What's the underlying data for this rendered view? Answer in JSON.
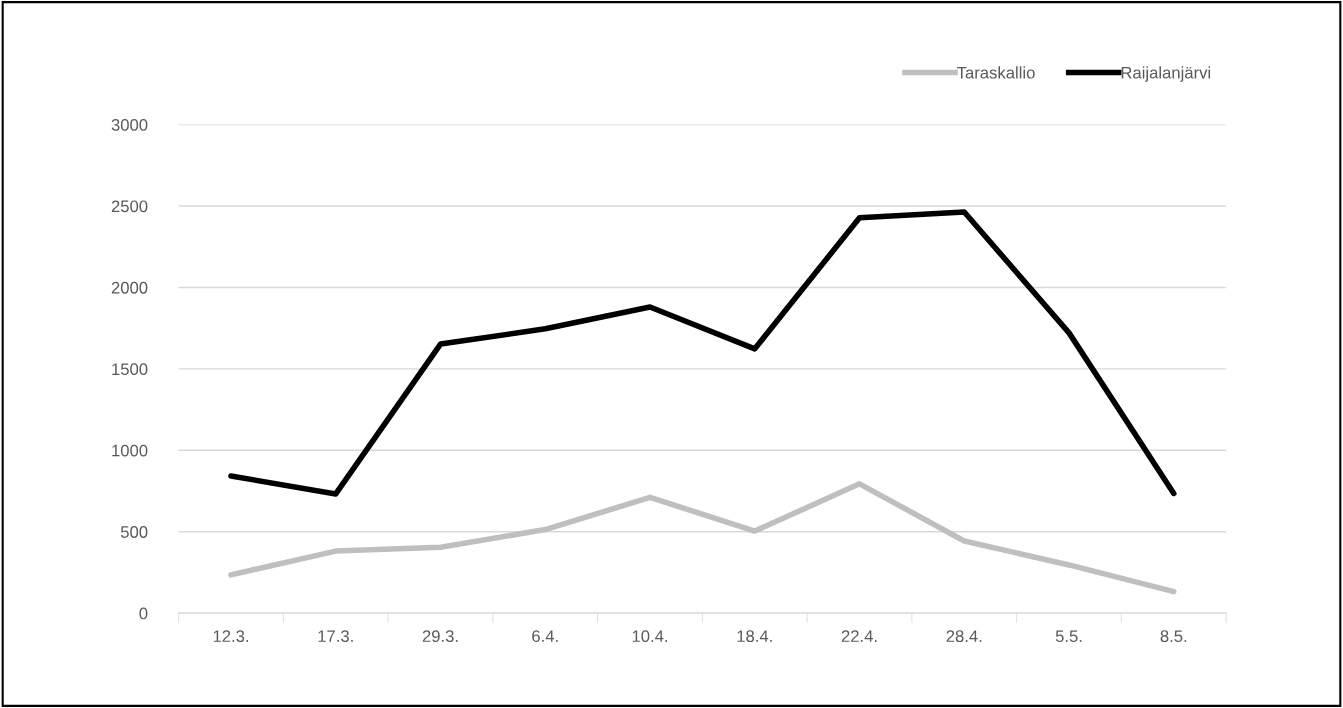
{
  "chart_data": {
    "type": "line",
    "categories": [
      "12.3.",
      "17.3.",
      "29.3.",
      "6.4.",
      "10.4.",
      "18.4.",
      "22.4.",
      "28.4.",
      "5.5.",
      "8.5."
    ],
    "series": [
      {
        "name": "Taraskallio",
        "color": "#bfbfbf",
        "values": [
          235,
          381,
          405,
          513,
          711,
          504,
          794,
          443,
          296,
          132
        ]
      },
      {
        "name": "Raijalanjärvi",
        "color": "#000000",
        "values": [
          842,
          732,
          1652,
          1746,
          1880,
          1623,
          2428,
          2463,
          1721,
          735
        ]
      }
    ],
    "ylim": [
      0,
      3000
    ],
    "yticks": [
      0,
      500,
      1000,
      1500,
      2000,
      2500,
      3000
    ],
    "grid": "y",
    "legend": "top right",
    "marker": "none",
    "line_style": "solid"
  }
}
